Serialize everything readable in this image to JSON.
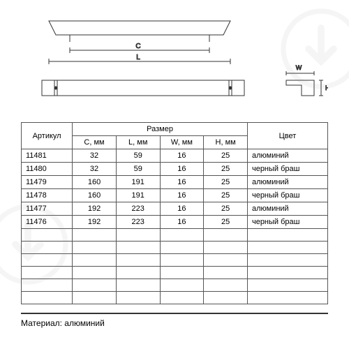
{
  "headers": {
    "article": "Артикул",
    "size": "Размер",
    "color": "Цвет",
    "c": "C, мм",
    "l": "L, мм",
    "w": "W, мм",
    "h": "H, мм"
  },
  "rows": [
    {
      "art": "11481",
      "c": "32",
      "l": "59",
      "w": "16",
      "h": "25",
      "color": "алюминий"
    },
    {
      "art": "11480",
      "c": "32",
      "l": "59",
      "w": "16",
      "h": "25",
      "color": "черный браш"
    },
    {
      "art": "11479",
      "c": "160",
      "l": "191",
      "w": "16",
      "h": "25",
      "color": "алюминий"
    },
    {
      "art": "11478",
      "c": "160",
      "l": "191",
      "w": "16",
      "h": "25",
      "color": "черный браш"
    },
    {
      "art": "11477",
      "c": "192",
      "l": "223",
      "w": "16",
      "h": "25",
      "color": "алюминий"
    },
    {
      "art": "11476",
      "c": "192",
      "l": "223",
      "w": "16",
      "h": "25",
      "color": "черный браш"
    }
  ],
  "empty_rows": 6,
  "material_label": "Материал: алюминий",
  "diagram": {
    "labels": {
      "c": "C",
      "l": "L",
      "w": "W",
      "h": "H"
    },
    "stroke": "#333"
  }
}
